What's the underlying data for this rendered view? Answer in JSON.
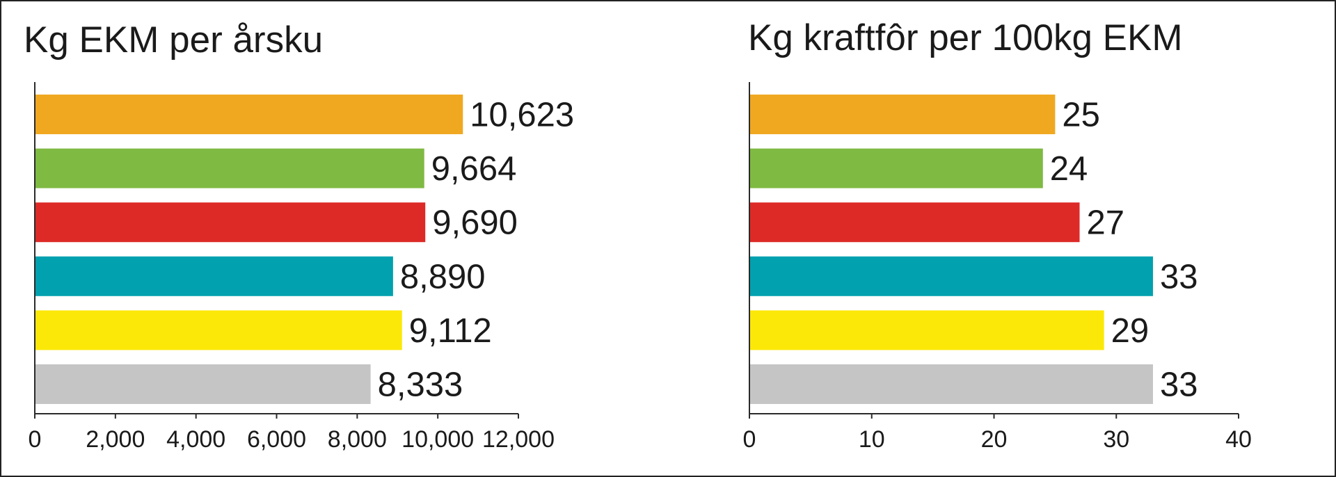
{
  "chart_data": [
    {
      "type": "bar",
      "orientation": "horizontal",
      "title": "Kg EKM per årsku",
      "xlim": [
        0,
        12000
      ],
      "xticks": [
        0,
        2000,
        4000,
        6000,
        8000,
        10000,
        12000
      ],
      "xtick_labels": [
        "0",
        "2,000",
        "4,000",
        "6,000",
        "8,000",
        "10,000",
        "12,000"
      ],
      "values": [
        10623,
        9664,
        9690,
        8890,
        9112,
        8333
      ],
      "value_labels": [
        "10,623",
        "9,664",
        "9,690",
        "8,890",
        "9,112",
        "8,333"
      ],
      "colors": [
        "#F0A821",
        "#7FBA42",
        "#DD2A27",
        "#02A1AF",
        "#FBE808",
        "#C5C5C5"
      ],
      "grid": false
    },
    {
      "type": "bar",
      "orientation": "horizontal",
      "title": "Kg kraftfôr per 100kg EKM",
      "xlim": [
        0,
        40
      ],
      "xticks": [
        0,
        10,
        20,
        30,
        40
      ],
      "xtick_labels": [
        "0",
        "10",
        "20",
        "30",
        "40"
      ],
      "values": [
        25,
        24,
        27,
        33,
        29,
        33
      ],
      "value_labels": [
        "25",
        "24",
        "27",
        "33",
        "29",
        "33"
      ],
      "colors": [
        "#F0A821",
        "#7FBA42",
        "#DD2A27",
        "#02A1AF",
        "#FBE808",
        "#C5C5C5"
      ],
      "grid": false
    }
  ]
}
